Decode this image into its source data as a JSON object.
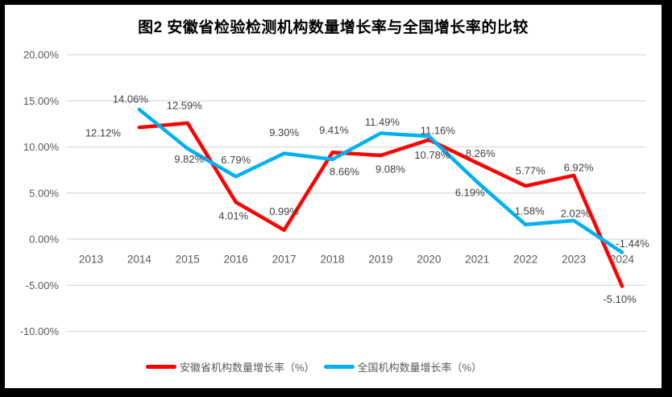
{
  "chart_data": {
    "type": "line",
    "title": "图2 安徽省检验检测机构数量增长率与全国增长率的比较",
    "categories": [
      "2013",
      "2014",
      "2015",
      "2016",
      "2017",
      "2018",
      "2019",
      "2020",
      "2021",
      "2022",
      "2023",
      "2024"
    ],
    "ylim": [
      -10,
      20
    ],
    "ytick_step": 5,
    "ytick_labels": [
      "20.00%",
      "15.00%",
      "10.00%",
      "5.00%",
      "0.00%",
      "-5.00%",
      "-10.00%"
    ],
    "grid": "horizontal-only",
    "gridline_color": "#D9D9D9",
    "axis_text_color": "#595959",
    "data_label_color": "#3F3F3F",
    "legend_position": "bottom",
    "background_color": "#FFFFFF",
    "frame_color": "#000000",
    "series": [
      {
        "name": "安徽省机构数量增长率（%）",
        "color": "#FF0000",
        "start_category": "2014",
        "values": [
          12.12,
          12.59,
          4.01,
          0.99,
          9.41,
          9.08,
          10.78,
          8.26,
          5.77,
          6.92,
          -5.1
        ],
        "labels": [
          "12.12%",
          "12.59%",
          "4.01%",
          "0.99%",
          "9.41%",
          "9.08%",
          "10.78%",
          "8.26%",
          "5.77%",
          "6.92%",
          "-5.10%"
        ],
        "label_offsets": [
          [
            -45,
            7
          ],
          [
            -4,
            -22
          ],
          [
            -3,
            17
          ],
          [
            0,
            -23
          ],
          [
            2,
            -28
          ],
          [
            12,
            17
          ],
          [
            4,
            19
          ],
          [
            4,
            -12
          ],
          [
            6,
            -19
          ],
          [
            6,
            -10
          ],
          [
            -3,
            16
          ]
        ]
      },
      {
        "name": "全国机构数量增长率（%）",
        "color": "#00B0F0",
        "start_category": "2014",
        "values": [
          14.06,
          9.82,
          6.79,
          9.3,
          8.66,
          11.49,
          11.16,
          6.19,
          1.58,
          2.02,
          -1.44
        ],
        "labels": [
          "14.06%",
          "9.82%",
          "6.79%",
          "9.30%",
          "8.66%",
          "11.49%",
          "11.16%",
          "6.19%",
          "1.58%",
          "2.02%",
          "-1.44%"
        ],
        "label_offsets": [
          [
            -11,
            -13
          ],
          [
            2,
            13
          ],
          [
            0,
            -21
          ],
          [
            0,
            -26
          ],
          [
            15,
            15
          ],
          [
            2,
            -14
          ],
          [
            11,
            -7
          ],
          [
            -9,
            13
          ],
          [
            5,
            -17
          ],
          [
            2,
            -9
          ],
          [
            13,
            -11
          ]
        ]
      }
    ]
  }
}
